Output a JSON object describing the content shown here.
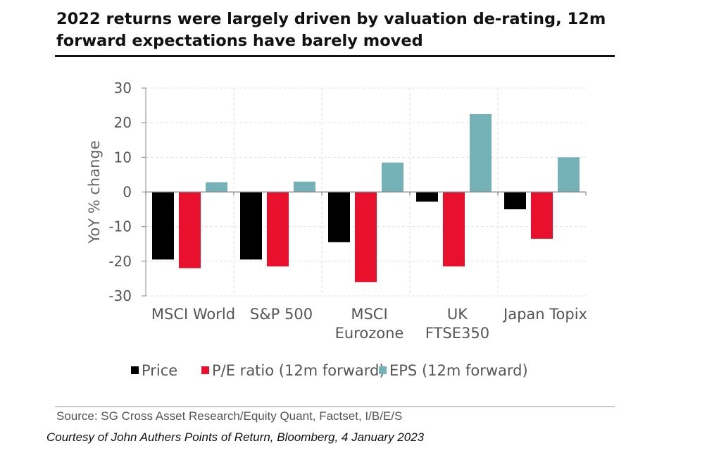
{
  "title": "2022 returns were largely driven by valuation de-rating, 12m forward expectations have barely moved",
  "source": "Source: SG Cross Asset Research/Equity Quant, Factset, I/B/E/S",
  "credit": "Courtesy of John Authers Points of Return, Bloomberg, 4 January 2023",
  "chart_data": {
    "type": "bar",
    "title": "2022 returns were largely driven by valuation de-rating, 12m forward expectations have barely moved",
    "xlabel": "",
    "ylabel": "YoY % change",
    "ylim": [
      -30,
      30
    ],
    "yticks": [
      30,
      20,
      10,
      0,
      -10,
      -20,
      -30
    ],
    "ytick_labels": [
      "30",
      "20",
      "10",
      "0",
      "-10",
      "-20",
      "-30"
    ],
    "categories": [
      [
        "MSCI World"
      ],
      [
        "S&P 500"
      ],
      [
        "MSCI",
        "Eurozone"
      ],
      [
        "UK",
        "FTSE350"
      ],
      [
        "Japan Topix"
      ]
    ],
    "series": [
      {
        "name": "Price",
        "color": "#000000",
        "values": [
          -19.5,
          -19.5,
          -14.5,
          -2.8,
          -5.0
        ]
      },
      {
        "name": "P/E ratio (12m forward)",
        "color": "#e8102d",
        "values": [
          -22.0,
          -21.5,
          -26.0,
          -21.5,
          -13.5
        ]
      },
      {
        "name": "EPS (12m forward)",
        "color": "#74b2b8",
        "values": [
          2.8,
          3.0,
          8.5,
          22.5,
          10.0
        ]
      }
    ],
    "grid": true,
    "legend_position": "bottom"
  }
}
